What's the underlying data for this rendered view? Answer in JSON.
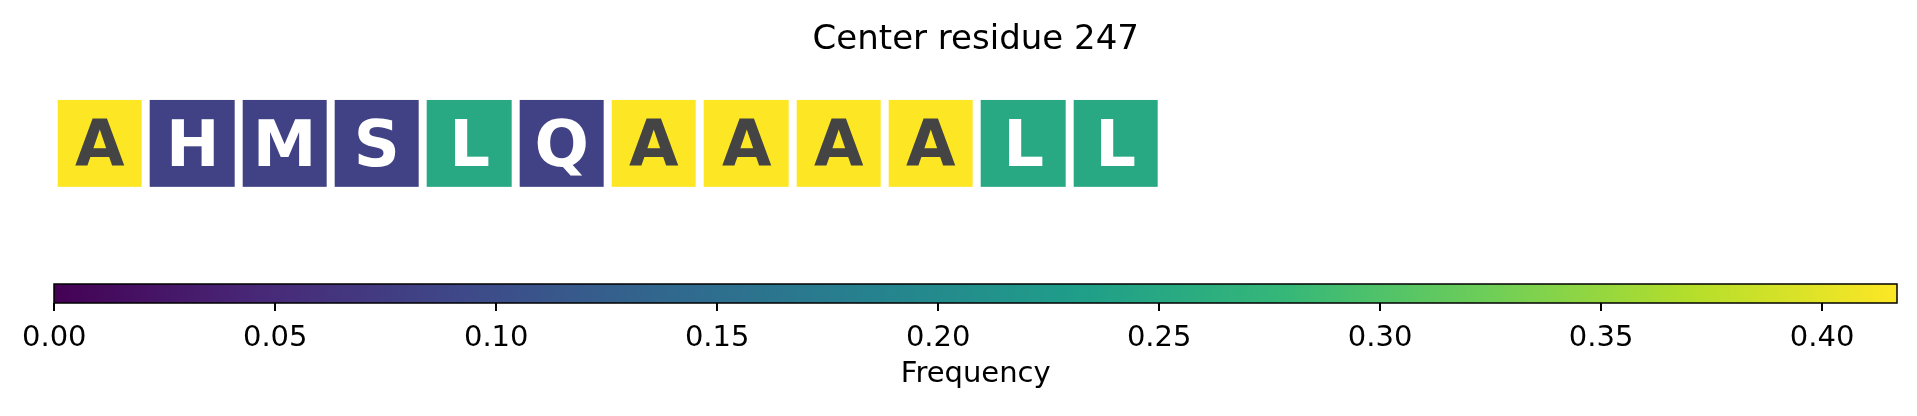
{
  "chart_data": {
    "type": "heatmap",
    "title": "Center residue 247",
    "clabel": "Frequency",
    "categories": [
      null,
      null,
      null,
      null,
      null,
      null,
      null,
      null,
      null,
      null,
      null,
      null
    ],
    "y_categories": [
      null
    ],
    "cells": [
      [
        0.417,
        0.083,
        0.083,
        0.083,
        0.25,
        0.083,
        0.417,
        0.417,
        0.417,
        0.417,
        0.25,
        0.25
      ]
    ],
    "cell_labels": [
      [
        "A",
        "H",
        "M",
        "S",
        "L",
        "Q",
        "A",
        "A",
        "A",
        "A",
        "L",
        "L"
      ]
    ],
    "clim": [
      0,
      0.417
    ],
    "cticks": [
      {
        "value": 0,
        "label": "0.00"
      },
      0.05,
      {
        "value": 0.1,
        "label": "0.10"
      },
      0.15,
      {
        "value": 0.2,
        "label": "0.20"
      },
      0.25,
      {
        "value": 0.3,
        "label": "0.30"
      },
      0.35,
      {
        "value": 0.4,
        "label": "0.40"
      }
    ]
  }
}
